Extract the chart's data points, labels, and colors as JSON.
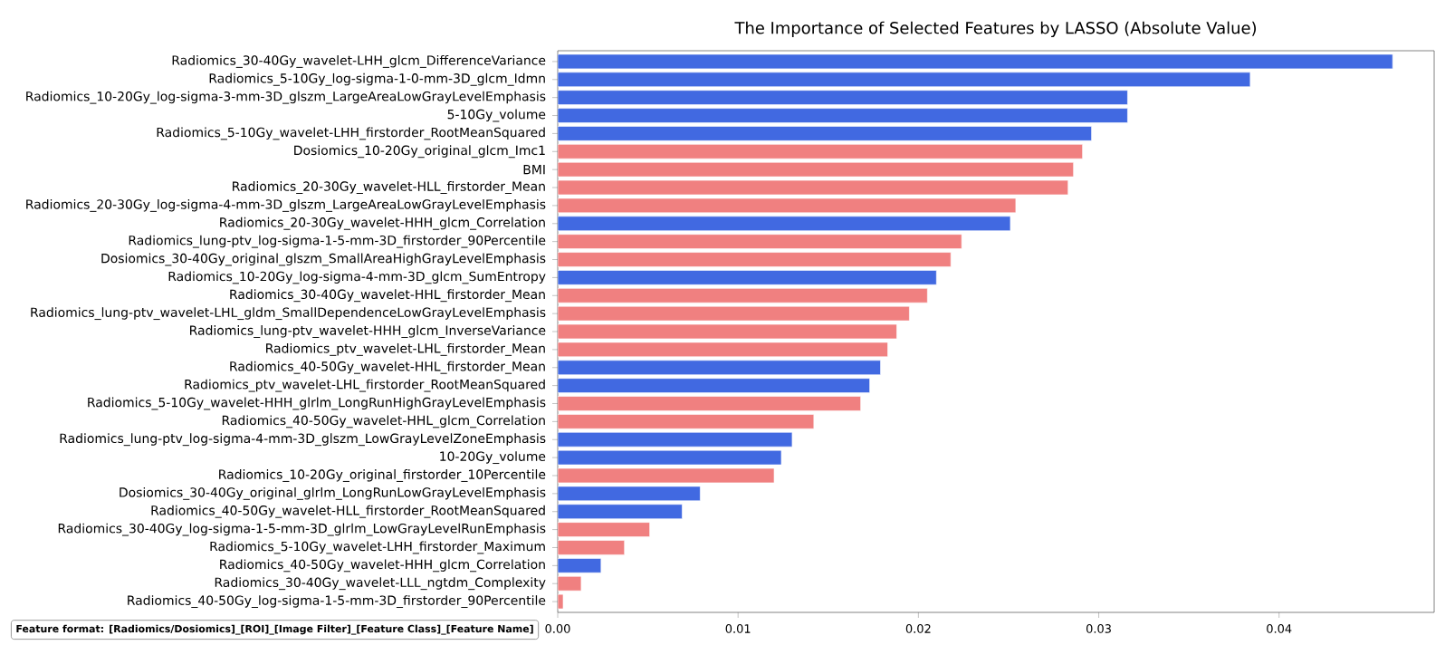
{
  "chart_data": {
    "type": "bar",
    "orientation": "horizontal",
    "title": "The Importance of Selected Features by LASSO (Absolute Value)",
    "categories": [
      "Radiomics_30-40Gy_wavelet-LHH_glcm_DifferenceVariance",
      "Radiomics_5-10Gy_log-sigma-1-0-mm-3D_glcm_Idmn",
      "Radiomics_10-20Gy_log-sigma-3-mm-3D_glszm_LargeAreaLowGrayLevelEmphasis",
      "5-10Gy_volume",
      "Radiomics_5-10Gy_wavelet-LHH_firstorder_RootMeanSquared",
      "Dosiomics_10-20Gy_original_glcm_Imc1",
      "BMI",
      "Radiomics_20-30Gy_wavelet-HLL_firstorder_Mean",
      "Radiomics_20-30Gy_log-sigma-4-mm-3D_glszm_LargeAreaLowGrayLevelEmphasis",
      "Radiomics_20-30Gy_wavelet-HHH_glcm_Correlation",
      "Radiomics_lung-ptv_log-sigma-1-5-mm-3D_firstorder_90Percentile",
      "Dosiomics_30-40Gy_original_glszm_SmallAreaHighGrayLevelEmphasis",
      "Radiomics_10-20Gy_log-sigma-4-mm-3D_glcm_SumEntropy",
      "Radiomics_30-40Gy_wavelet-HHL_firstorder_Mean",
      "Radiomics_lung-ptv_wavelet-LHL_gldm_SmallDependenceLowGrayLevelEmphasis",
      "Radiomics_lung-ptv_wavelet-HHH_glcm_InverseVariance",
      "Radiomics_ptv_wavelet-LHL_firstorder_Mean",
      "Radiomics_40-50Gy_wavelet-HHL_firstorder_Mean",
      "Radiomics_ptv_wavelet-LHL_firstorder_RootMeanSquared",
      "Radiomics_5-10Gy_wavelet-HHH_glrlm_LongRunHighGrayLevelEmphasis",
      "Radiomics_40-50Gy_wavelet-HHL_glcm_Correlation",
      "Radiomics_lung-ptv_log-sigma-4-mm-3D_glszm_LowGrayLevelZoneEmphasis",
      "10-20Gy_volume",
      "Radiomics_10-20Gy_original_firstorder_10Percentile",
      "Dosiomics_30-40Gy_original_glrlm_LongRunLowGrayLevelEmphasis",
      "Radiomics_40-50Gy_wavelet-HLL_firstorder_RootMeanSquared",
      "Radiomics_30-40Gy_log-sigma-1-5-mm-3D_glrlm_LowGrayLevelRunEmphasis",
      "Radiomics_5-10Gy_wavelet-LHH_firstorder_Maximum",
      "Radiomics_40-50Gy_wavelet-HHH_glcm_Correlation",
      "Radiomics_30-40Gy_wavelet-LLL_ngtdm_Complexity",
      "Radiomics_40-50Gy_log-sigma-1-5-mm-3D_firstorder_90Percentile"
    ],
    "values": [
      0.0463,
      0.0384,
      0.0316,
      0.0316,
      0.0296,
      0.0291,
      0.0286,
      0.0283,
      0.0254,
      0.0251,
      0.0224,
      0.0218,
      0.021,
      0.0205,
      0.0195,
      0.0188,
      0.0183,
      0.0179,
      0.0173,
      0.0168,
      0.0142,
      0.013,
      0.0124,
      0.012,
      0.0079,
      0.0069,
      0.0051,
      0.0037,
      0.0024,
      0.0013,
      0.0003
    ],
    "colors": [
      "#4169e1",
      "#4169e1",
      "#4169e1",
      "#4169e1",
      "#4169e1",
      "#f08080",
      "#f08080",
      "#f08080",
      "#f08080",
      "#4169e1",
      "#f08080",
      "#f08080",
      "#4169e1",
      "#f08080",
      "#f08080",
      "#f08080",
      "#f08080",
      "#4169e1",
      "#4169e1",
      "#f08080",
      "#f08080",
      "#4169e1",
      "#4169e1",
      "#f08080",
      "#4169e1",
      "#4169e1",
      "#f08080",
      "#f08080",
      "#4169e1",
      "#f08080",
      "#f08080"
    ],
    "xlim": [
      0,
      0.0486
    ],
    "xticks": [
      {
        "value": 0,
        "label": "0.00"
      },
      {
        "value": 0.01,
        "label": "0.01"
      },
      {
        "value": 0.02,
        "label": "0.02"
      },
      {
        "value": 0.03,
        "label": "0.03"
      },
      {
        "value": 0.04,
        "label": "0.04"
      }
    ],
    "annotations": [
      "Feature format: [Radiomics/Dosiomics]_[ROI]_[Image Filter]_[Feature Class]_[Feature Name]"
    ]
  }
}
